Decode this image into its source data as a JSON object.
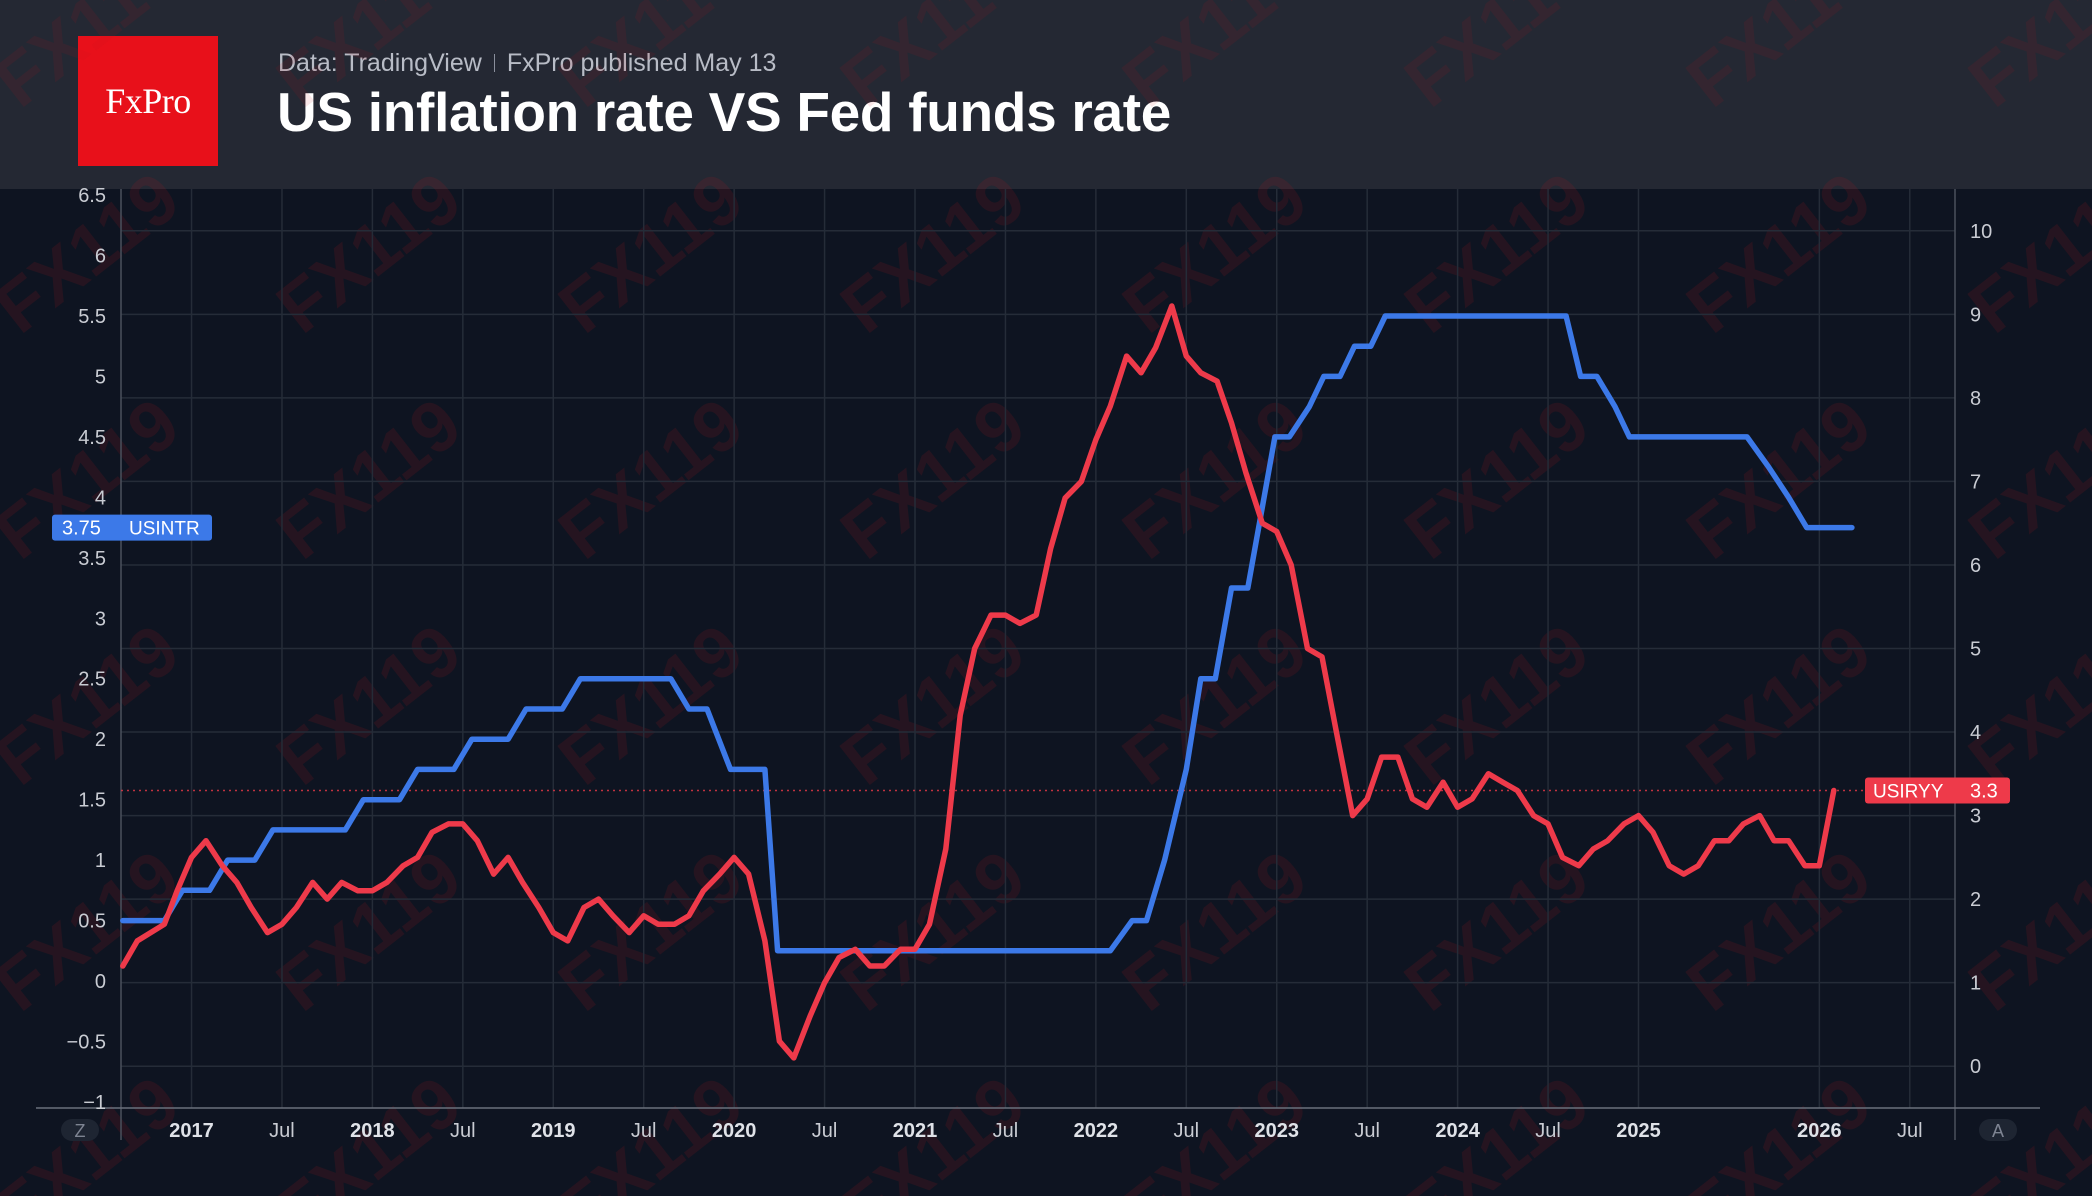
{
  "header": {
    "logo_text": "FxPro",
    "source": "Data: TradingView",
    "published": "FxPro published May 13",
    "title": "US inflation rate VS Fed funds rate"
  },
  "watermark": "FX119",
  "corner_buttons": {
    "left": "Z",
    "right": "A"
  },
  "colors": {
    "fed_rate": "#3c79e8",
    "inflation": "#ee3a4a",
    "grid": "#252c38",
    "background": "#0e1421",
    "header_bg": "#242833",
    "logo_bg": "#e8101a"
  },
  "chart_data": {
    "type": "line",
    "x_ticks": [
      {
        "label": "2017",
        "date": 2017.0,
        "bold": true
      },
      {
        "label": "Jul",
        "date": 2017.5,
        "bold": false
      },
      {
        "label": "2018",
        "date": 2018.0,
        "bold": true
      },
      {
        "label": "Jul",
        "date": 2018.5,
        "bold": false
      },
      {
        "label": "2019",
        "date": 2019.0,
        "bold": true
      },
      {
        "label": "Jul",
        "date": 2019.5,
        "bold": false
      },
      {
        "label": "2020",
        "date": 2020.0,
        "bold": true
      },
      {
        "label": "Jul",
        "date": 2020.5,
        "bold": false
      },
      {
        "label": "2021",
        "date": 2021.0,
        "bold": true
      },
      {
        "label": "Jul",
        "date": 2021.5,
        "bold": false
      },
      {
        "label": "2022",
        "date": 2022.0,
        "bold": true
      },
      {
        "label": "Jul",
        "date": 2022.5,
        "bold": false
      },
      {
        "label": "2023",
        "date": 2023.0,
        "bold": true
      },
      {
        "label": "Jul",
        "date": 2023.5,
        "bold": false
      },
      {
        "label": "2024",
        "date": 2024.0,
        "bold": true
      },
      {
        "label": "Jul",
        "date": 2024.5,
        "bold": false
      },
      {
        "label": "2025",
        "date": 2025.0,
        "bold": true
      },
      {
        "label": "2026",
        "date": 2026.0,
        "bold": true
      },
      {
        "label": "Jul",
        "date": 2026.5,
        "bold": false
      }
    ],
    "xlim": [
      2016.61,
      2026.75
    ],
    "left_axis": {
      "ylim": [
        -1.05,
        6.55
      ],
      "ticks": [
        {
          "label": "6.5",
          "value": 6.5
        },
        {
          "label": "6",
          "value": 6
        },
        {
          "label": "5.5",
          "value": 5.5
        },
        {
          "label": "5",
          "value": 5
        },
        {
          "label": "4.5",
          "value": 4.5
        },
        {
          "label": "4",
          "value": 4
        },
        {
          "label": "3.5",
          "value": 3.5
        },
        {
          "label": "3",
          "value": 3
        },
        {
          "label": "2.5",
          "value": 2.5
        },
        {
          "label": "2",
          "value": 2
        },
        {
          "label": "1.5",
          "value": 1.5
        },
        {
          "label": "1",
          "value": 1
        },
        {
          "label": "0.5",
          "value": 0.5
        },
        {
          "label": "0",
          "value": 0
        },
        {
          "label": "−0.5",
          "value": -0.5
        },
        {
          "label": "−1",
          "value": -1
        }
      ]
    },
    "right_axis": {
      "ylim": [
        -0.5,
        10.5
      ],
      "ticks": [
        {
          "label": "10",
          "value": 10
        },
        {
          "label": "9",
          "value": 9
        },
        {
          "label": "8",
          "value": 8
        },
        {
          "label": "7",
          "value": 7
        },
        {
          "label": "6",
          "value": 6
        },
        {
          "label": "5",
          "value": 5
        },
        {
          "label": "4",
          "value": 4
        },
        {
          "label": "3",
          "value": 3
        },
        {
          "label": "2",
          "value": 2
        },
        {
          "label": "1",
          "value": 1
        },
        {
          "label": "0",
          "value": 0
        }
      ]
    },
    "series": [
      {
        "name": "USINTR",
        "axis": "left",
        "last_label": "3.75",
        "points": [
          [
            2016.62,
            0.5
          ],
          [
            2016.85,
            0.5
          ],
          [
            2016.95,
            0.75
          ],
          [
            2017.1,
            0.75
          ],
          [
            2017.2,
            1.0
          ],
          [
            2017.35,
            1.0
          ],
          [
            2017.45,
            1.25
          ],
          [
            2017.85,
            1.25
          ],
          [
            2017.95,
            1.5
          ],
          [
            2018.15,
            1.5
          ],
          [
            2018.25,
            1.75
          ],
          [
            2018.45,
            1.75
          ],
          [
            2018.55,
            2.0
          ],
          [
            2018.75,
            2.0
          ],
          [
            2018.85,
            2.25
          ],
          [
            2019.05,
            2.25
          ],
          [
            2019.15,
            2.5
          ],
          [
            2019.65,
            2.5
          ],
          [
            2019.75,
            2.25
          ],
          [
            2019.85,
            2.25
          ],
          [
            2019.98,
            1.75
          ],
          [
            2020.1,
            1.75
          ],
          [
            2020.17,
            1.75
          ],
          [
            2020.24,
            0.25
          ],
          [
            2022.08,
            0.25
          ],
          [
            2022.2,
            0.5
          ],
          [
            2022.28,
            0.5
          ],
          [
            2022.38,
            1.0
          ],
          [
            2022.5,
            1.75
          ],
          [
            2022.58,
            2.5
          ],
          [
            2022.66,
            2.5
          ],
          [
            2022.75,
            3.25
          ],
          [
            2022.84,
            3.25
          ],
          [
            2022.93,
            4.0
          ],
          [
            2022.99,
            4.5
          ],
          [
            2023.07,
            4.5
          ],
          [
            2023.18,
            4.75
          ],
          [
            2023.26,
            5.0
          ],
          [
            2023.35,
            5.0
          ],
          [
            2023.43,
            5.25
          ],
          [
            2023.52,
            5.25
          ],
          [
            2023.6,
            5.5
          ],
          [
            2024.6,
            5.5
          ],
          [
            2024.68,
            5.0
          ],
          [
            2024.77,
            5.0
          ],
          [
            2024.87,
            4.75
          ],
          [
            2024.95,
            4.5
          ],
          [
            2025.6,
            4.5
          ],
          [
            2025.72,
            4.25
          ],
          [
            2025.83,
            4.0
          ],
          [
            2025.93,
            3.75
          ],
          [
            2026.18,
            3.75
          ]
        ]
      },
      {
        "name": "USIRYY",
        "axis": "right",
        "last_label": "3.3",
        "points": [
          [
            2016.62,
            1.2
          ],
          [
            2016.7,
            1.5
          ],
          [
            2016.85,
            1.7
          ],
          [
            2016.92,
            2.1
          ],
          [
            2017.0,
            2.5
          ],
          [
            2017.08,
            2.7
          ],
          [
            2017.17,
            2.4
          ],
          [
            2017.25,
            2.2
          ],
          [
            2017.33,
            1.9
          ],
          [
            2017.42,
            1.6
          ],
          [
            2017.5,
            1.7
          ],
          [
            2017.58,
            1.9
          ],
          [
            2017.67,
            2.2
          ],
          [
            2017.75,
            2.0
          ],
          [
            2017.83,
            2.2
          ],
          [
            2017.92,
            2.1
          ],
          [
            2018.0,
            2.1
          ],
          [
            2018.08,
            2.2
          ],
          [
            2018.17,
            2.4
          ],
          [
            2018.25,
            2.5
          ],
          [
            2018.33,
            2.8
          ],
          [
            2018.42,
            2.9
          ],
          [
            2018.5,
            2.9
          ],
          [
            2018.58,
            2.7
          ],
          [
            2018.67,
            2.3
          ],
          [
            2018.75,
            2.5
          ],
          [
            2018.83,
            2.2
          ],
          [
            2018.92,
            1.9
          ],
          [
            2019.0,
            1.6
          ],
          [
            2019.08,
            1.5
          ],
          [
            2019.17,
            1.9
          ],
          [
            2019.25,
            2.0
          ],
          [
            2019.33,
            1.8
          ],
          [
            2019.42,
            1.6
          ],
          [
            2019.5,
            1.8
          ],
          [
            2019.58,
            1.7
          ],
          [
            2019.67,
            1.7
          ],
          [
            2019.75,
            1.8
          ],
          [
            2019.83,
            2.1
          ],
          [
            2019.92,
            2.3
          ],
          [
            2020.0,
            2.5
          ],
          [
            2020.08,
            2.3
          ],
          [
            2020.17,
            1.5
          ],
          [
            2020.25,
            0.3
          ],
          [
            2020.33,
            0.1
          ],
          [
            2020.42,
            0.6
          ],
          [
            2020.5,
            1.0
          ],
          [
            2020.58,
            1.3
          ],
          [
            2020.67,
            1.4
          ],
          [
            2020.75,
            1.2
          ],
          [
            2020.83,
            1.2
          ],
          [
            2020.92,
            1.4
          ],
          [
            2021.0,
            1.4
          ],
          [
            2021.08,
            1.7
          ],
          [
            2021.17,
            2.6
          ],
          [
            2021.25,
            4.2
          ],
          [
            2021.33,
            5.0
          ],
          [
            2021.42,
            5.4
          ],
          [
            2021.5,
            5.4
          ],
          [
            2021.58,
            5.3
          ],
          [
            2021.67,
            5.4
          ],
          [
            2021.75,
            6.2
          ],
          [
            2021.83,
            6.8
          ],
          [
            2021.92,
            7.0
          ],
          [
            2022.0,
            7.5
          ],
          [
            2022.08,
            7.9
          ],
          [
            2022.17,
            8.5
          ],
          [
            2022.25,
            8.3
          ],
          [
            2022.33,
            8.6
          ],
          [
            2022.42,
            9.1
          ],
          [
            2022.5,
            8.5
          ],
          [
            2022.58,
            8.3
          ],
          [
            2022.67,
            8.2
          ],
          [
            2022.75,
            7.7
          ],
          [
            2022.83,
            7.1
          ],
          [
            2022.92,
            6.5
          ],
          [
            2023.0,
            6.4
          ],
          [
            2023.08,
            6.0
          ],
          [
            2023.17,
            5.0
          ],
          [
            2023.25,
            4.9
          ],
          [
            2023.33,
            4.0
          ],
          [
            2023.42,
            3.0
          ],
          [
            2023.5,
            3.2
          ],
          [
            2023.58,
            3.7
          ],
          [
            2023.67,
            3.7
          ],
          [
            2023.75,
            3.2
          ],
          [
            2023.83,
            3.1
          ],
          [
            2023.92,
            3.4
          ],
          [
            2024.0,
            3.1
          ],
          [
            2024.08,
            3.2
          ],
          [
            2024.17,
            3.5
          ],
          [
            2024.25,
            3.4
          ],
          [
            2024.33,
            3.3
          ],
          [
            2024.42,
            3.0
          ],
          [
            2024.5,
            2.9
          ],
          [
            2024.58,
            2.5
          ],
          [
            2024.67,
            2.4
          ],
          [
            2024.75,
            2.6
          ],
          [
            2024.83,
            2.7
          ],
          [
            2024.92,
            2.9
          ],
          [
            2025.0,
            3.0
          ],
          [
            2025.08,
            2.8
          ],
          [
            2025.17,
            2.4
          ],
          [
            2025.25,
            2.3
          ],
          [
            2025.33,
            2.4
          ],
          [
            2025.42,
            2.7
          ],
          [
            2025.5,
            2.7
          ],
          [
            2025.58,
            2.9
          ],
          [
            2025.67,
            3.0
          ],
          [
            2025.75,
            2.7
          ],
          [
            2025.83,
            2.7
          ],
          [
            2025.92,
            2.4
          ],
          [
            2026.0,
            2.4
          ],
          [
            2026.08,
            3.3
          ]
        ]
      }
    ],
    "grid": true,
    "reference_line": {
      "axis": "right",
      "value": 3.3
    }
  }
}
